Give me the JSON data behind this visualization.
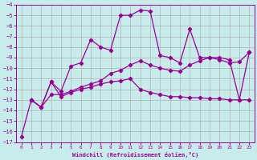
{
  "xlabel": "Windchill (Refroidissement éolien,°C)",
  "bg_color": "#c8ecec",
  "grid_color": "#b0b0b0",
  "line_color": "#990099",
  "xlim": [
    -0.5,
    23.5
  ],
  "ylim": [
    -17,
    -4
  ],
  "xticks": [
    0,
    1,
    2,
    3,
    4,
    5,
    6,
    7,
    8,
    9,
    10,
    11,
    12,
    13,
    14,
    15,
    16,
    17,
    18,
    19,
    20,
    21,
    22,
    23
  ],
  "yticks": [
    -4,
    -5,
    -6,
    -7,
    -8,
    -9,
    -10,
    -11,
    -12,
    -13,
    -14,
    -15,
    -16,
    -17
  ],
  "line1_x": [
    0,
    1,
    2,
    3,
    4,
    5,
    6,
    7,
    8,
    9,
    10,
    11,
    12,
    13,
    14,
    15,
    16,
    17,
    18,
    19,
    20,
    21,
    22,
    23
  ],
  "line1_y": [
    -16.5,
    -13.0,
    -13.7,
    -11.3,
    -12.7,
    -12.3,
    -12.0,
    -11.8,
    -11.5,
    -11.3,
    -11.2,
    -11.0,
    -12.0,
    -12.3,
    -12.5,
    -12.7,
    -12.7,
    -12.8,
    -12.8,
    -12.9,
    -12.9,
    -13.0,
    -13.0,
    -13.0
  ],
  "line2_x": [
    1,
    2,
    3,
    4,
    5,
    6,
    7,
    8,
    9,
    10,
    11,
    12,
    13,
    14,
    15,
    16,
    17,
    18,
    19,
    20,
    21,
    22,
    23
  ],
  "line2_y": [
    -13.0,
    -13.7,
    -11.3,
    -12.2,
    -9.8,
    -9.5,
    -7.3,
    -8.0,
    -8.3,
    -5.0,
    -5.0,
    -4.5,
    -4.6,
    -8.8,
    -9.0,
    -9.5,
    -6.3,
    -9.0,
    -9.0,
    -9.2,
    -9.5,
    -9.4,
    -8.5
  ],
  "line3_x": [
    1,
    2,
    3,
    4,
    5,
    6,
    7,
    8,
    9,
    10,
    11,
    12,
    13,
    14,
    15,
    16,
    17,
    18,
    19,
    20,
    21,
    22,
    23
  ],
  "line3_y": [
    -13.0,
    -13.7,
    -12.5,
    -12.5,
    -12.2,
    -11.8,
    -11.5,
    -11.2,
    -10.5,
    -10.2,
    -9.7,
    -9.3,
    -9.7,
    -10.0,
    -10.2,
    -10.3,
    -9.7,
    -9.3,
    -9.0,
    -9.0,
    -9.2,
    -13.0,
    -8.5
  ]
}
